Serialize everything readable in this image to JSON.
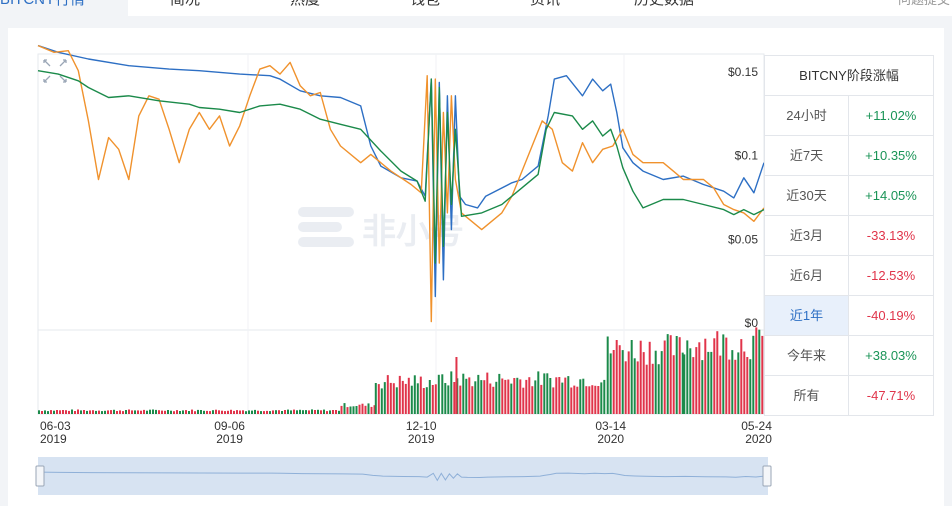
{
  "tabs": [
    {
      "label": "BITCNY行情",
      "active": true
    },
    {
      "label": "简况"
    },
    {
      "label": "热度"
    },
    {
      "label": "钱包"
    },
    {
      "label": "资讯"
    },
    {
      "label": "历史数据"
    }
  ],
  "feedback_label": "问题提交",
  "watermark": "非小号",
  "colors": {
    "blue": "#2d6fc4",
    "orange": "#f0922d",
    "green": "#1b8a4a",
    "vol_up": "#1b8a4a",
    "vol_down": "#e0344a"
  },
  "chart_data": {
    "type": "line",
    "x_ticks": [
      {
        "date": "06-03",
        "year": "2019",
        "x": 0
      },
      {
        "date": "09-06",
        "year": "2019",
        "x": 95
      },
      {
        "date": "12-10",
        "year": "2019",
        "x": 190
      },
      {
        "date": "03-14",
        "year": "2020",
        "x": 284
      },
      {
        "date": "05-24",
        "year": "2020",
        "x": 355
      }
    ],
    "y_ticks": [
      "$0.15",
      "$0.1",
      "$0.05",
      "$0"
    ],
    "y_tick_values": [
      0.15,
      0.1,
      0.05,
      0
    ],
    "ylim": [
      0,
      0.165
    ],
    "xlim": [
      0,
      360
    ],
    "series": [
      {
        "color_key": "blue",
        "points": [
          [
            0,
            0.17
          ],
          [
            10,
            0.166
          ],
          [
            25,
            0.162
          ],
          [
            45,
            0.158
          ],
          [
            65,
            0.156
          ],
          [
            80,
            0.155
          ],
          [
            100,
            0.153
          ],
          [
            115,
            0.152
          ],
          [
            120,
            0.15
          ],
          [
            130,
            0.143
          ],
          [
            140,
            0.14
          ],
          [
            150,
            0.139
          ],
          [
            160,
            0.134
          ],
          [
            165,
            0.11
          ],
          [
            170,
            0.098
          ],
          [
            180,
            0.091
          ],
          [
            188,
            0.089
          ],
          [
            192,
            0.08
          ],
          [
            195,
            0.15
          ],
          [
            197,
            0.02
          ],
          [
            199,
            0.148
          ],
          [
            201,
            0.03
          ],
          [
            203,
            0.14
          ],
          [
            205,
            0.06
          ],
          [
            207,
            0.14
          ],
          [
            209,
            0.08
          ],
          [
            212,
            0.075
          ],
          [
            218,
            0.073
          ],
          [
            222,
            0.08
          ],
          [
            235,
            0.088
          ],
          [
            240,
            0.09
          ],
          [
            248,
            0.098
          ],
          [
            250,
            0.11
          ],
          [
            253,
            0.128
          ],
          [
            256,
            0.15
          ],
          [
            262,
            0.152
          ],
          [
            270,
            0.14
          ],
          [
            275,
            0.15
          ],
          [
            280,
            0.143
          ],
          [
            284,
            0.147
          ],
          [
            287,
            0.13
          ],
          [
            290,
            0.109
          ],
          [
            295,
            0.1
          ],
          [
            300,
            0.095
          ],
          [
            310,
            0.09
          ],
          [
            320,
            0.092
          ],
          [
            330,
            0.087
          ],
          [
            340,
            0.083
          ],
          [
            345,
            0.079
          ],
          [
            350,
            0.091
          ],
          [
            355,
            0.082
          ],
          [
            360,
            0.1
          ]
        ]
      },
      {
        "color_key": "orange",
        "points": [
          [
            0,
            0.17
          ],
          [
            8,
            0.166
          ],
          [
            15,
            0.167
          ],
          [
            20,
            0.155
          ],
          [
            25,
            0.125
          ],
          [
            30,
            0.09
          ],
          [
            35,
            0.115
          ],
          [
            40,
            0.108
          ],
          [
            45,
            0.09
          ],
          [
            50,
            0.128
          ],
          [
            55,
            0.14
          ],
          [
            60,
            0.138
          ],
          [
            65,
            0.12
          ],
          [
            70,
            0.1
          ],
          [
            75,
            0.12
          ],
          [
            80,
            0.13
          ],
          [
            85,
            0.12
          ],
          [
            90,
            0.128
          ],
          [
            95,
            0.11
          ],
          [
            100,
            0.122
          ],
          [
            105,
            0.14
          ],
          [
            110,
            0.156
          ],
          [
            115,
            0.158
          ],
          [
            120,
            0.153
          ],
          [
            125,
            0.16
          ],
          [
            130,
            0.146
          ],
          [
            135,
            0.14
          ],
          [
            140,
            0.142
          ],
          [
            145,
            0.12
          ],
          [
            150,
            0.11
          ],
          [
            160,
            0.1
          ],
          [
            165,
            0.105
          ],
          [
            175,
            0.095
          ],
          [
            185,
            0.087
          ],
          [
            190,
            0.082
          ],
          [
            193,
            0.152
          ],
          [
            195,
            0.005
          ],
          [
            197,
            0.15
          ],
          [
            199,
            0.04
          ],
          [
            201,
            0.13
          ],
          [
            203,
            0.07
          ],
          [
            205,
            0.14
          ],
          [
            207,
            0.09
          ],
          [
            210,
            0.07
          ],
          [
            220,
            0.06
          ],
          [
            230,
            0.07
          ],
          [
            235,
            0.08
          ],
          [
            240,
            0.095
          ],
          [
            245,
            0.11
          ],
          [
            250,
            0.125
          ],
          [
            255,
            0.12
          ],
          [
            260,
            0.1
          ],
          [
            265,
            0.095
          ],
          [
            270,
            0.112
          ],
          [
            275,
            0.1
          ],
          [
            280,
            0.108
          ],
          [
            285,
            0.11
          ],
          [
            290,
            0.12
          ],
          [
            295,
            0.105
          ],
          [
            300,
            0.1
          ],
          [
            310,
            0.1
          ],
          [
            315,
            0.095
          ],
          [
            320,
            0.09
          ],
          [
            330,
            0.09
          ],
          [
            335,
            0.085
          ],
          [
            340,
            0.075
          ],
          [
            345,
            0.072
          ],
          [
            350,
            0.07
          ],
          [
            355,
            0.065
          ],
          [
            360,
            0.073
          ]
        ]
      },
      {
        "color_key": "green",
        "points": [
          [
            0,
            0.155
          ],
          [
            10,
            0.153
          ],
          [
            20,
            0.149
          ],
          [
            25,
            0.145
          ],
          [
            35,
            0.139
          ],
          [
            45,
            0.14
          ],
          [
            60,
            0.137
          ],
          [
            75,
            0.135
          ],
          [
            80,
            0.133
          ],
          [
            90,
            0.132
          ],
          [
            100,
            0.13
          ],
          [
            110,
            0.134
          ],
          [
            120,
            0.135
          ],
          [
            130,
            0.132
          ],
          [
            140,
            0.126
          ],
          [
            150,
            0.123
          ],
          [
            160,
            0.12
          ],
          [
            170,
            0.107
          ],
          [
            180,
            0.095
          ],
          [
            188,
            0.089
          ],
          [
            192,
            0.077
          ],
          [
            195,
            0.15
          ],
          [
            197,
            0.04
          ],
          [
            199,
            0.145
          ],
          [
            201,
            0.05
          ],
          [
            203,
            0.13
          ],
          [
            205,
            0.075
          ],
          [
            207,
            0.12
          ],
          [
            210,
            0.068
          ],
          [
            220,
            0.07
          ],
          [
            230,
            0.075
          ],
          [
            240,
            0.085
          ],
          [
            248,
            0.093
          ],
          [
            252,
            0.12
          ],
          [
            256,
            0.13
          ],
          [
            265,
            0.128
          ],
          [
            270,
            0.12
          ],
          [
            275,
            0.125
          ],
          [
            280,
            0.116
          ],
          [
            284,
            0.12
          ],
          [
            287,
            0.11
          ],
          [
            290,
            0.097
          ],
          [
            295,
            0.083
          ],
          [
            300,
            0.073
          ],
          [
            310,
            0.078
          ],
          [
            320,
            0.078
          ],
          [
            330,
            0.075
          ],
          [
            340,
            0.072
          ],
          [
            345,
            0.069
          ],
          [
            350,
            0.072
          ],
          [
            355,
            0.069
          ],
          [
            360,
            0.072
          ]
        ]
      }
    ],
    "volume": [
      {
        "x0": 0,
        "x1": 150,
        "h": 0.05
      },
      {
        "x0": 150,
        "x1": 167,
        "h": 0.12
      },
      {
        "x0": 167,
        "x1": 200,
        "h": 0.44
      },
      {
        "x0": 200,
        "x1": 282,
        "h": 0.47
      },
      {
        "x0": 282,
        "x1": 320,
        "h": 0.88
      },
      {
        "x0": 320,
        "x1": 360,
        "h": 0.96
      }
    ],
    "period_changes_title": "BITCNY阶段涨幅",
    "period_changes": [
      {
        "label": "24小时",
        "value": "+11.02%"
      },
      {
        "label": "近7天",
        "value": "+10.35%"
      },
      {
        "label": "近30天",
        "value": "+14.05%"
      },
      {
        "label": "近3月",
        "value": "-33.13%"
      },
      {
        "label": "近6月",
        "value": "-12.53%"
      },
      {
        "label": "近1年",
        "value": "-40.19%",
        "selected": true
      },
      {
        "label": "今年来",
        "value": "+38.03%"
      },
      {
        "label": "所有",
        "value": "-47.71%"
      }
    ]
  }
}
